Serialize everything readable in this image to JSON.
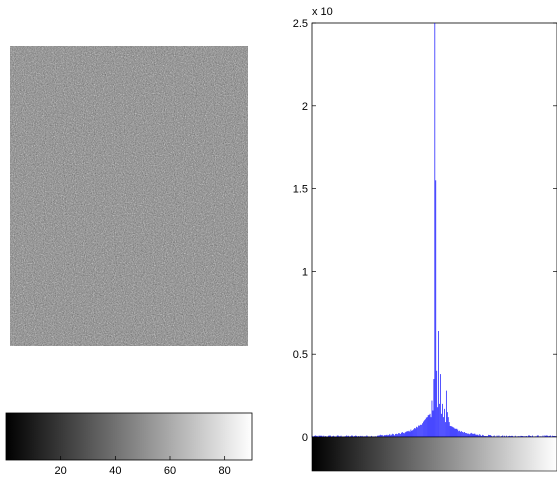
{
  "chart_data": [
    {
      "type": "image",
      "description_colormap": "gray",
      "noise_mean_gray": 128
    },
    {
      "type": "colorbar",
      "colormap": "gray",
      "orientation": "horizontal",
      "xlim": [
        0,
        90
      ],
      "xticks": [
        "20",
        "40",
        "60",
        "80"
      ]
    },
    {
      "type": "bar",
      "title": "",
      "xlabel": "",
      "ylabel": "",
      "exponent_label": "x 10",
      "ylim": [
        0,
        2.5
      ],
      "yticks": [
        "0",
        "0.5",
        "1",
        "1.5",
        "2",
        "2.5"
      ],
      "bar_color": "#0000ff",
      "bins": 256,
      "peak_bin": 128,
      "values": {
        "124": 0.12,
        "125": 0.22,
        "126": 0.16,
        "127": 0.35,
        "128": 2.5,
        "129": 1.55,
        "130": 0.4,
        "131": 0.18,
        "132": 0.64,
        "133": 0.2,
        "134": 0.38,
        "135": 0.14,
        "136": 0.2,
        "137": 0.12,
        "138": 0.17,
        "139": 0.09,
        "140": 0.28,
        "141": 0.15,
        "142": 0.12,
        "143": 0.09
      },
      "background_level": 0.08,
      "x_colorbar": "gray"
    }
  ]
}
